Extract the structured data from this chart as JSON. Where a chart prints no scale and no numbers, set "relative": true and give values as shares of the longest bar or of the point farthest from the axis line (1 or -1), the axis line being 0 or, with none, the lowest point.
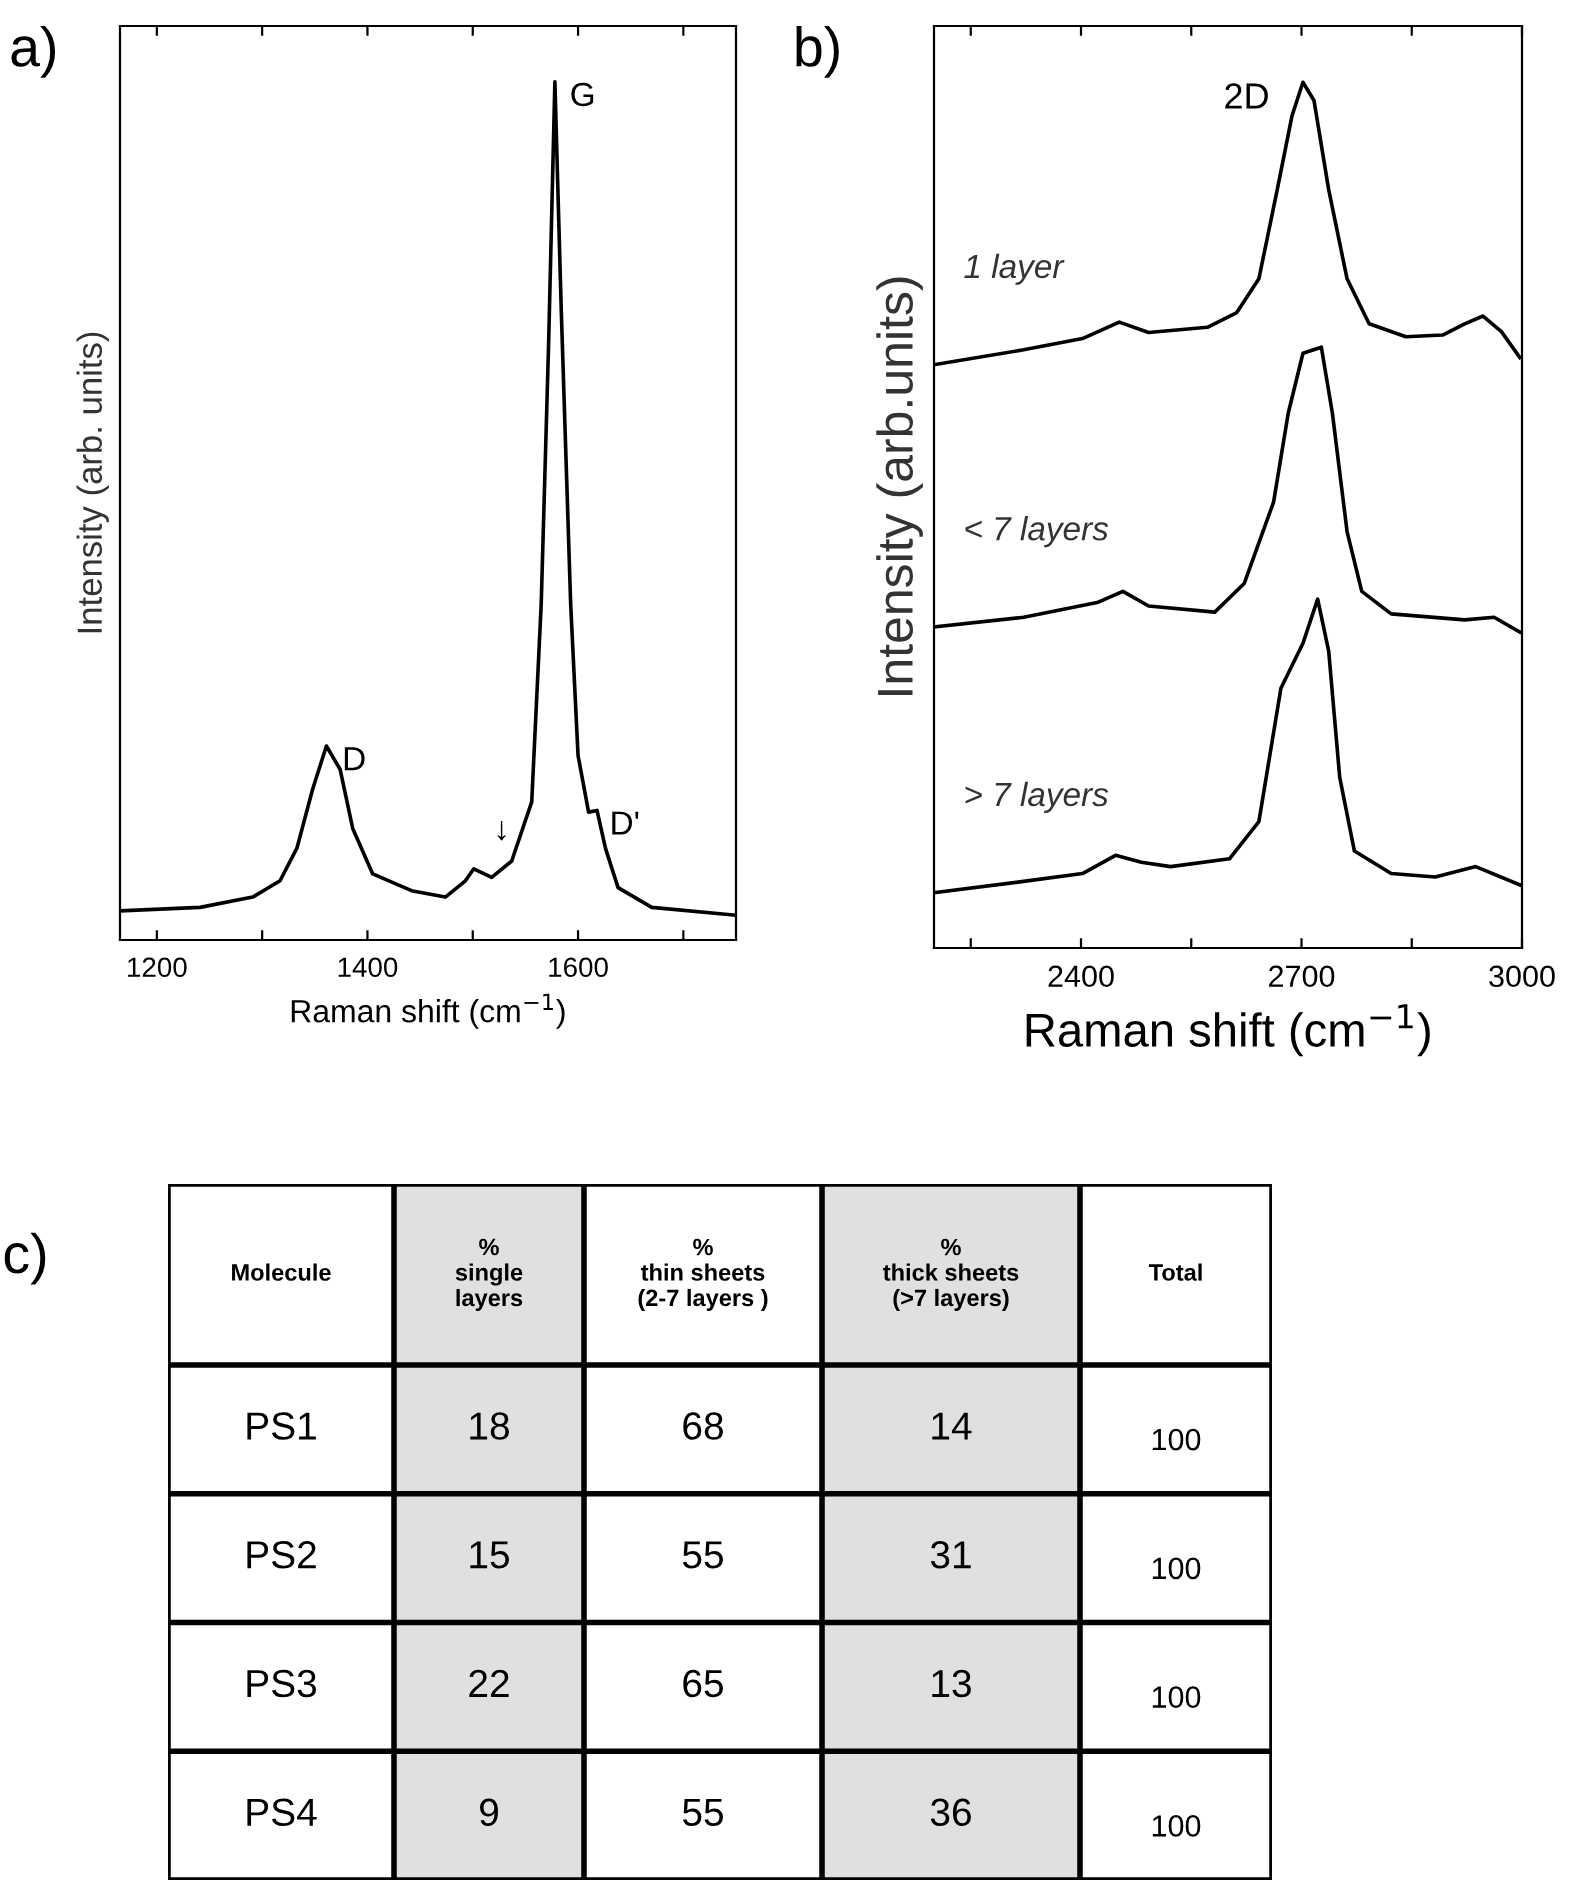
{
  "chart_data": [
    {
      "type": "line",
      "title": "a)",
      "xlabel": "Raman shift (cm$^{−1}$)",
      "ylabel": "Intensity (arb. units)",
      "relative": true,
      "color": "#000000",
      "xlim": [
        1165,
        1750
      ],
      "xticks": [
        1200,
        {
          "value": 1300,
          "label": null
        },
        1400,
        {
          "value": 1500,
          "label": null
        },
        1600,
        {
          "value": 1700,
          "label": null
        }
      ],
      "x": [
        1165,
        1241,
        1291,
        1317,
        1333,
        1348,
        1361,
        1374,
        1386,
        1405,
        1443,
        1474,
        1493,
        1501,
        1518,
        1537,
        1556,
        1565,
        1572,
        1578,
        1584,
        1593,
        1600,
        1610,
        1618,
        1626,
        1638,
        1670,
        1749
      ],
      "values": [
        0.034,
        0.038,
        0.05,
        0.069,
        0.107,
        0.176,
        0.226,
        0.199,
        0.13,
        0.077,
        0.057,
        0.05,
        0.069,
        0.083,
        0.073,
        0.092,
        0.161,
        0.391,
        0.693,
        1.0,
        0.736,
        0.391,
        0.215,
        0.149,
        0.151,
        0.107,
        0.061,
        0.038,
        0.029
      ],
      "annotations": [
        {
          "text": "D",
          "x": 1361,
          "y": 0.226
        },
        {
          "text": "G",
          "x": 1578,
          "y": 1.0
        },
        {
          "text": "D'",
          "x": 1618,
          "y": 0.151
        },
        {
          "text": "↓",
          "x": 1501,
          "y": 0.083
        }
      ]
    },
    {
      "type": "line",
      "title": "b)",
      "xlabel": "Raman shift (cm$^{−1}$)",
      "ylabel": "Intensity (arb.units)",
      "relative": true,
      "xlim": [
        2200,
        3000
      ],
      "xticks": [
        {
          "value": 2250,
          "label": null
        },
        2400,
        {
          "value": 2550,
          "label": null
        },
        2700,
        {
          "value": 2850,
          "label": null
        },
        3000
      ],
      "series": [
        {
          "name": "1 layer",
          "color": "#000000",
          "x": [
            2202,
            2322,
            2402,
            2452,
            2492,
            2572,
            2612,
            2642,
            2667,
            2687,
            2702,
            2717,
            2737,
            2762,
            2792,
            2842,
            2892,
            2922,
            2947,
            2972,
            2997
          ],
          "values": [
            0.674,
            0.691,
            0.704,
            0.723,
            0.711,
            0.717,
            0.734,
            0.773,
            0.876,
            0.961,
            1.0,
            0.979,
            0.876,
            0.773,
            0.721,
            0.706,
            0.708,
            0.721,
            0.73,
            0.712,
            0.682
          ]
        },
        {
          "name": "< 7 layers",
          "color": "#000000",
          "x": [
            2202,
            2322,
            2422,
            2457,
            2492,
            2582,
            2622,
            2662,
            2682,
            2702,
            2727,
            2742,
            2762,
            2782,
            2822,
            2922,
            2962,
            2997
          ],
          "values": [
            0.371,
            0.382,
            0.399,
            0.412,
            0.395,
            0.388,
            0.421,
            0.515,
            0.618,
            0.687,
            0.694,
            0.618,
            0.481,
            0.412,
            0.386,
            0.379,
            0.382,
            0.365
          ]
        },
        {
          "name": "> 7 layers",
          "color": "#000000",
          "x": [
            2202,
            2322,
            2402,
            2447,
            2482,
            2522,
            2602,
            2642,
            2672,
            2702,
            2722,
            2737,
            2752,
            2772,
            2822,
            2882,
            2937,
            2997
          ],
          "values": [
            0.064,
            0.077,
            0.086,
            0.107,
            0.099,
            0.094,
            0.103,
            0.146,
            0.3,
            0.352,
            0.403,
            0.343,
            0.197,
            0.112,
            0.086,
            0.082,
            0.094,
            0.073
          ]
        }
      ],
      "annotations": [
        {
          "text": "2D",
          "x": 2702,
          "y": 1.0
        }
      ]
    },
    {
      "type": "other",
      "title": "c)",
      "categories": [
        "Molecule",
        "%\nsingle\nlayers",
        "%\nthin sheets\n(2-7 layers )",
        "%\nthick sheets\n(>7 layers)",
        "Total"
      ],
      "colors": [
        null,
        "#e0e0e0",
        null,
        "#e0e0e0",
        null
      ],
      "y_categories": [
        "PS1",
        "PS2",
        "PS3",
        "PS4"
      ],
      "cell_labels": [
        [
          "18",
          "68",
          "14",
          "100"
        ],
        [
          "15",
          "55",
          "31",
          "100"
        ],
        [
          "22",
          "65",
          "13",
          "100"
        ],
        [
          "9",
          "55",
          "36",
          "100"
        ]
      ]
    }
  ]
}
